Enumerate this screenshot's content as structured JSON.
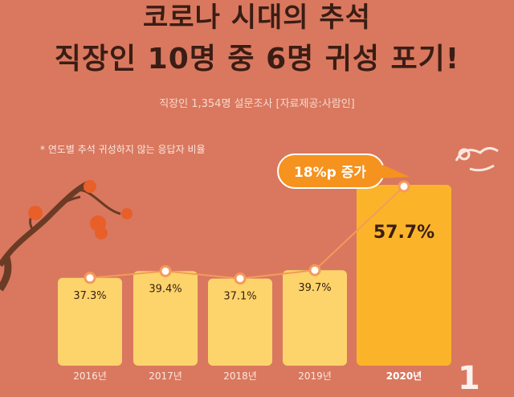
{
  "header": {
    "title_line1": "코로나 시대의 추석",
    "title_line2": "직장인 10명 중 6명 귀성 포기!",
    "subtitle": "직장인 1,354명 설문조사 [자료제공:사람인]"
  },
  "note": "* 연도별 추석 귀성하지 않는 응답자 비율",
  "callout": "18%p 증가",
  "colors": {
    "background": "#d9785f",
    "bar": "#fcd46b",
    "bar_highlight": "#fbb42a",
    "line": "#f59a5a",
    "callout": "#f6921e"
  },
  "chart_data": {
    "type": "bar",
    "title": "직장인 10명 중 6명 귀성 포기!",
    "categories": [
      "2016년",
      "2017년",
      "2018년",
      "2019년",
      "2020년"
    ],
    "values": [
      37.3,
      39.4,
      37.1,
      39.7,
      57.7
    ],
    "value_labels": [
      "37.3%",
      "39.4%",
      "37.1%",
      "39.7%",
      "57.7%"
    ],
    "highlight_index": 4,
    "unit": "%",
    "grid": false,
    "legend": "none"
  }
}
